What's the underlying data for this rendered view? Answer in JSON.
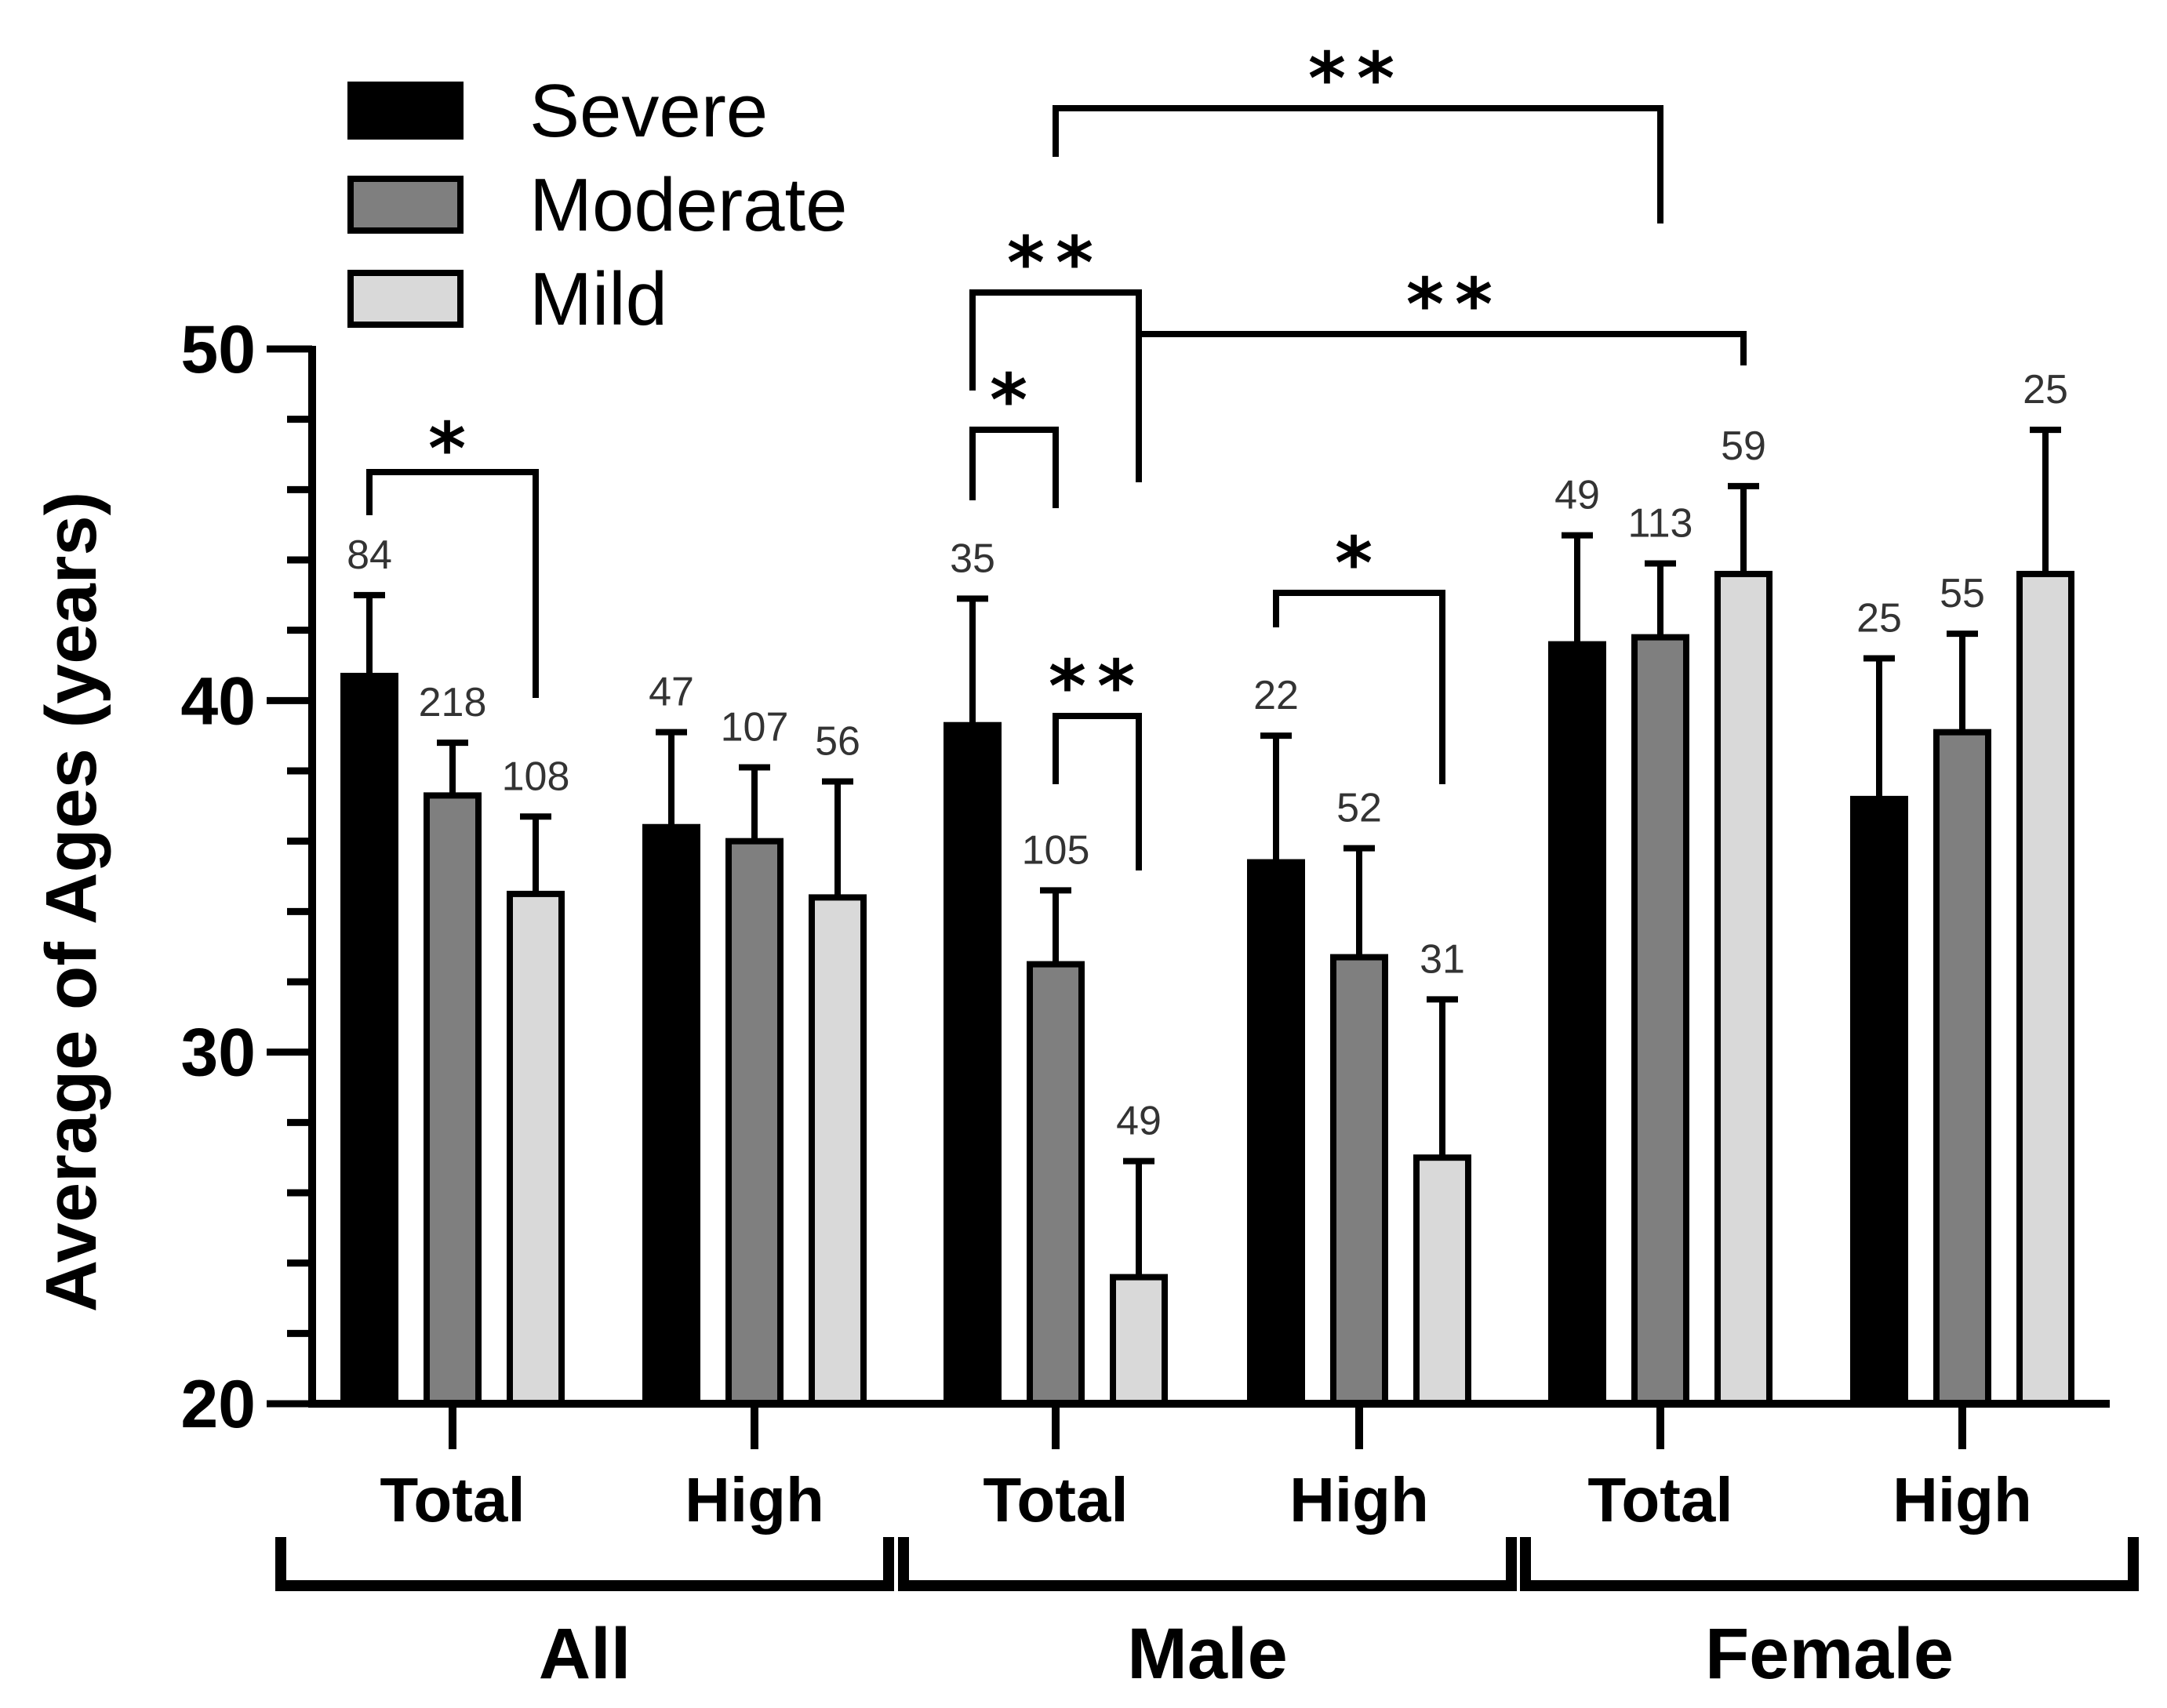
{
  "chart_data": {
    "type": "bar",
    "title": "",
    "xlabel": "",
    "ylabel": "Average of Ages (years)",
    "ylim": [
      20,
      50
    ],
    "yticks": [
      20,
      30,
      40,
      50
    ],
    "legend_position": "top-left",
    "groups": [
      {
        "name": "All",
        "categories": [
          "Total",
          "High"
        ]
      },
      {
        "name": "Male",
        "categories": [
          "Total",
          "High"
        ]
      },
      {
        "name": "Female",
        "categories": [
          "Total",
          "High"
        ]
      }
    ],
    "categories": [
      "Total",
      "High",
      "Total",
      "High",
      "Total",
      "High"
    ],
    "series": [
      {
        "name": "Severe",
        "color": "#000000",
        "values": [
          40.7,
          36.4,
          39.3,
          35.4,
          41.6,
          37.2
        ],
        "errors": [
          2.3,
          2.7,
          3.6,
          3.6,
          3.1,
          4.0
        ],
        "n_labels": [
          "84",
          "47",
          "35",
          "22",
          "49",
          "25"
        ]
      },
      {
        "name": "Moderate",
        "color": "#7f7f7f",
        "values": [
          37.3,
          36.0,
          32.5,
          32.7,
          41.8,
          39.1
        ],
        "errors": [
          1.5,
          2.1,
          2.1,
          3.1,
          2.1,
          2.8
        ],
        "n_labels": [
          "218",
          "107",
          "105",
          "52",
          "113",
          "55"
        ]
      },
      {
        "name": "Mild",
        "color": "#d9d9d9",
        "values": [
          34.5,
          34.4,
          23.6,
          27.0,
          43.6,
          43.6
        ],
        "errors": [
          2.2,
          3.3,
          3.3,
          4.5,
          2.5,
          4.1
        ],
        "n_labels": [
          "108",
          "56",
          "49",
          "31",
          "59",
          "25"
        ]
      }
    ],
    "significance": [
      {
        "label": "*",
        "from": {
          "cat": 0,
          "series": 0
        },
        "to": {
          "cat": 0,
          "series": 2
        }
      },
      {
        "label": "*",
        "from": {
          "cat": 2,
          "series": 0
        },
        "to": {
          "cat": 2,
          "series": 1
        }
      },
      {
        "label": "**",
        "from": {
          "cat": 2,
          "series": 0
        },
        "to": {
          "cat": 2,
          "series": 2
        }
      },
      {
        "label": "**",
        "from": {
          "cat": 2,
          "series": 1
        },
        "to": {
          "cat": 2,
          "series": 2
        }
      },
      {
        "label": "*",
        "from": {
          "cat": 3,
          "series": 0
        },
        "to": {
          "cat": 3,
          "series": 2
        }
      },
      {
        "label": "**",
        "from": {
          "cat": 2,
          "series": 2
        },
        "to": {
          "cat": 4,
          "series": 2
        }
      },
      {
        "label": "**",
        "from": {
          "cat": 2,
          "series": 1
        },
        "to": {
          "cat": 4,
          "series": 1
        }
      }
    ]
  }
}
